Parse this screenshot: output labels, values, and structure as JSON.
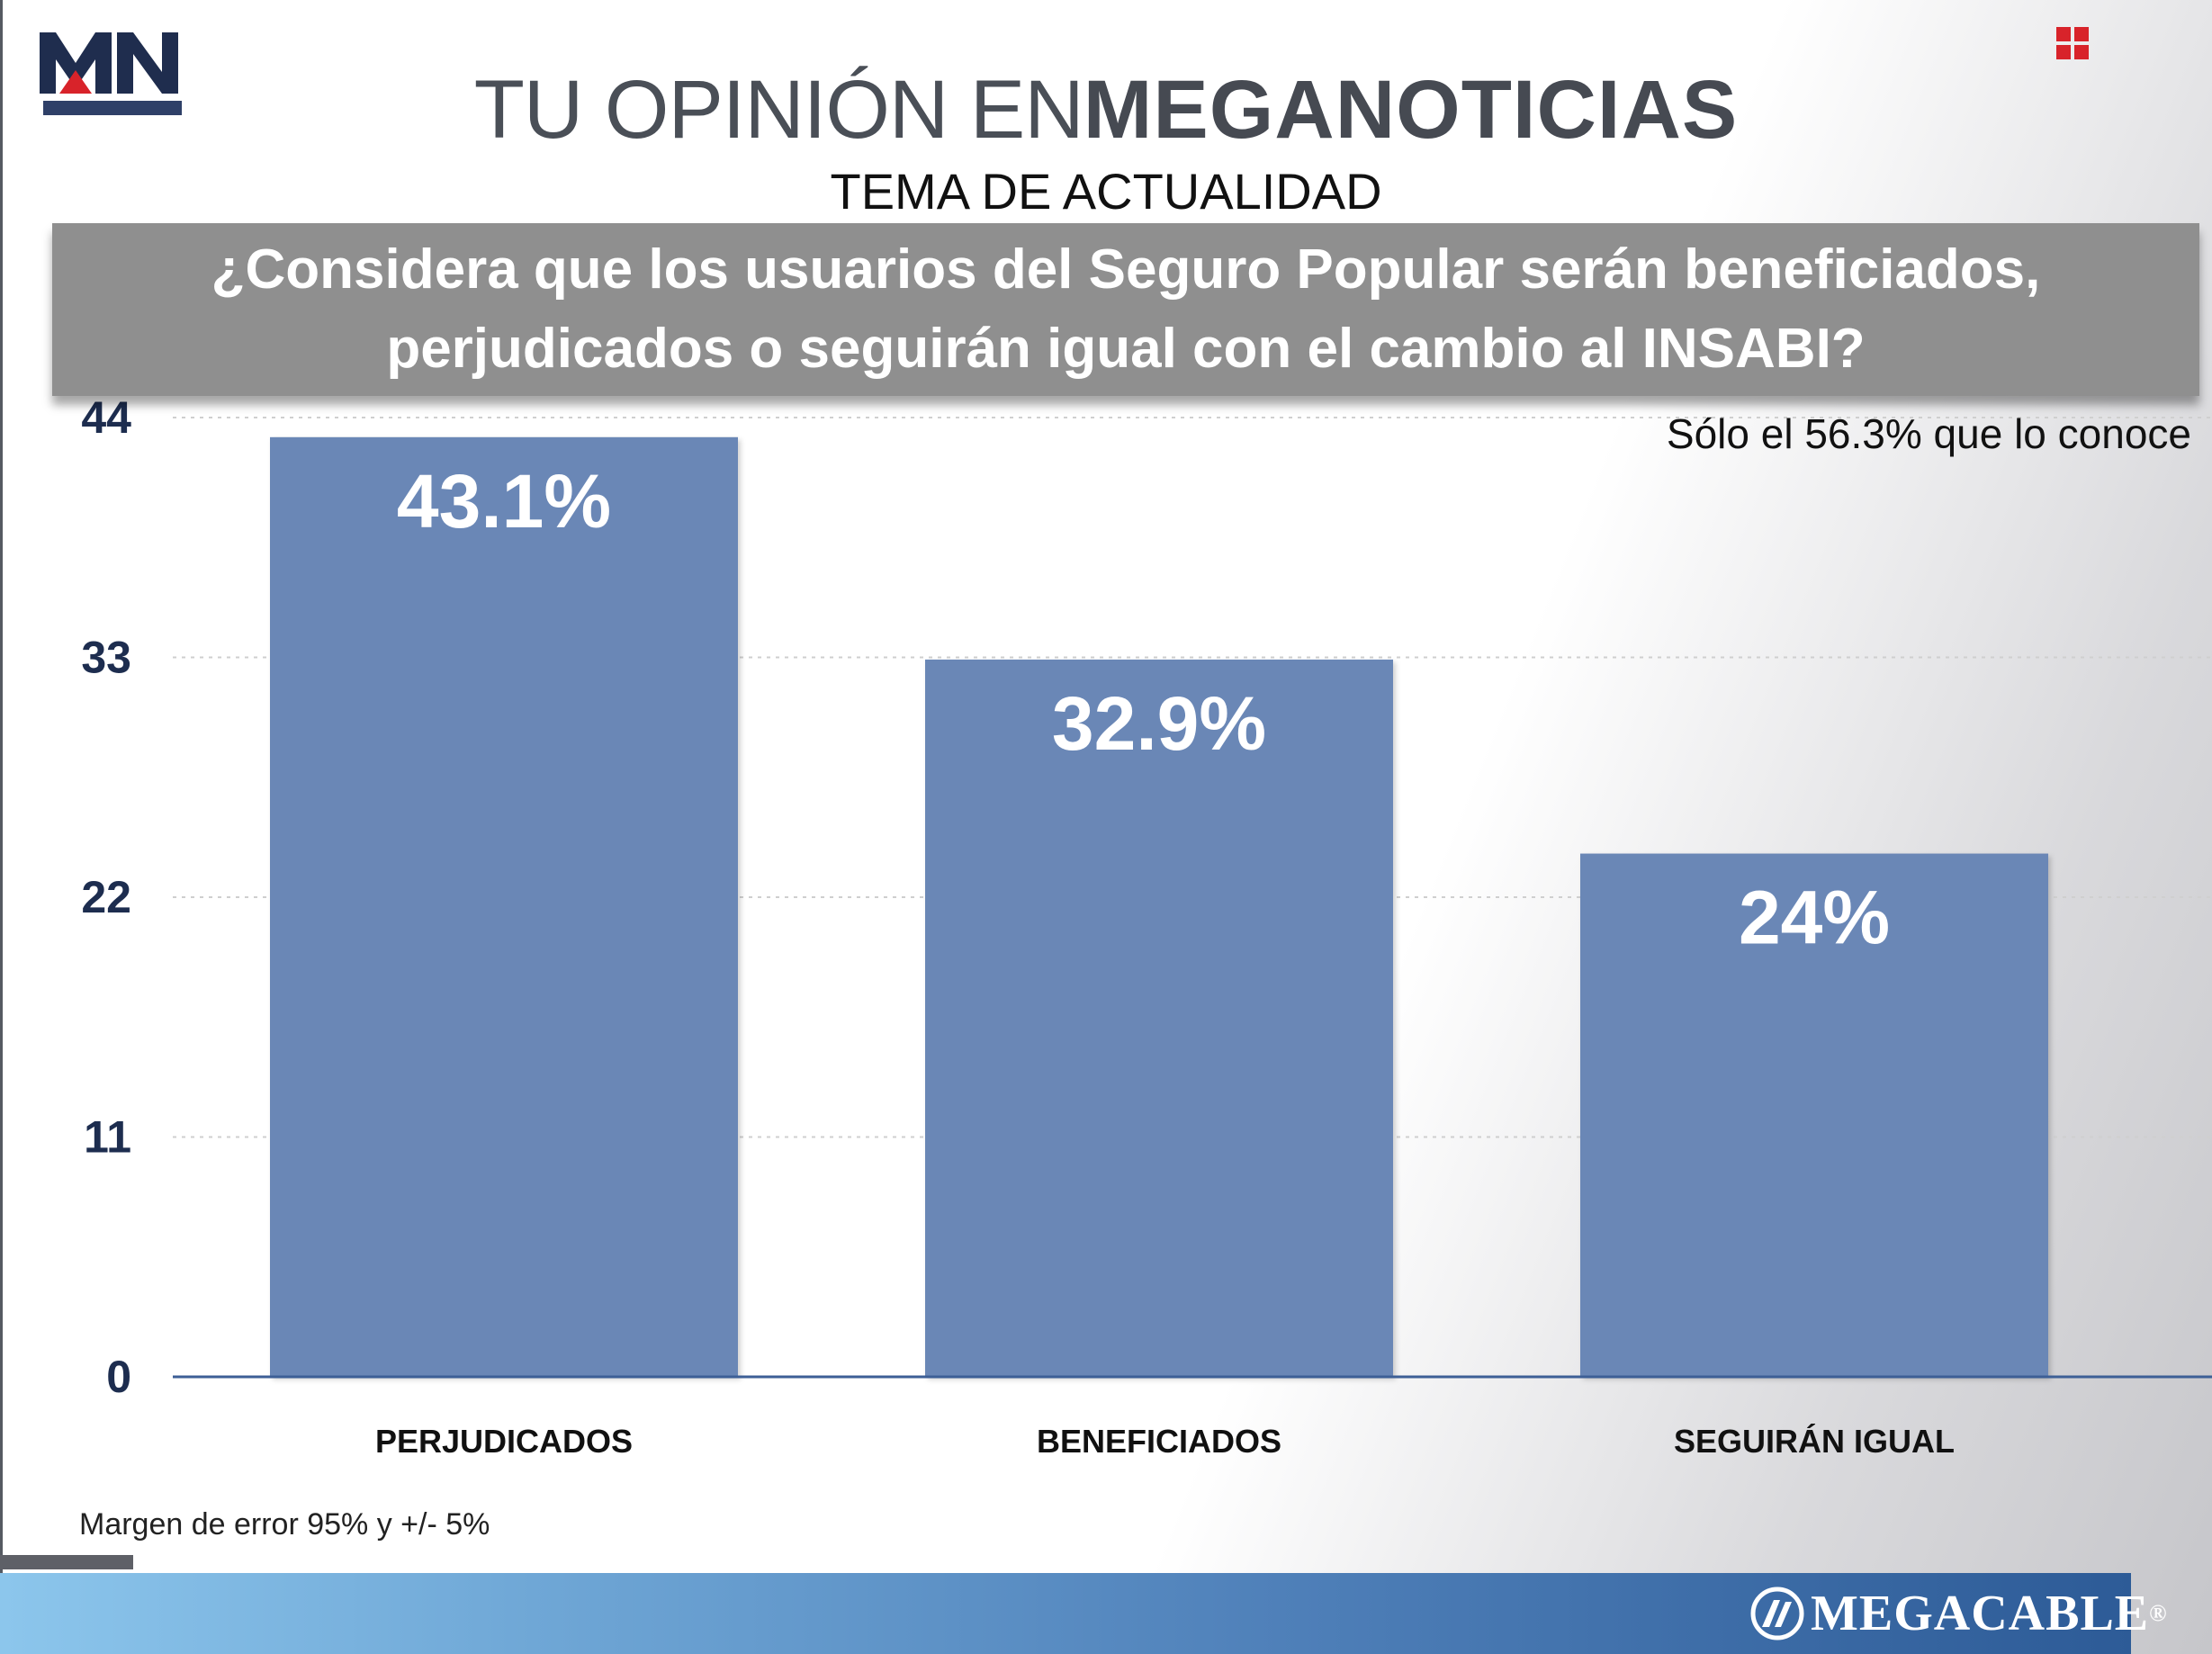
{
  "header": {
    "logo_text": "MN",
    "title_light": "TU OPINIÓN EN",
    "title_bold": "MEGANOTICIAS",
    "subtitle": "TEMA DE ACTUALIDAD"
  },
  "question": "¿Considera que los usuarios del Seguro Popular serán beneficiados, perjudicados o seguirán igual con el cambio al INSABI?",
  "note": "Sólo el 56.3% que lo conoce",
  "colors": {
    "bar": "#6b87b6",
    "axis_text": "#1d2d4f",
    "baseline": "#3d5f96",
    "question_bg": "#8f8f8f",
    "logo_dark": "#1f2d4e",
    "logo_red": "#d8232a",
    "grid_icon": "#d8232a"
  },
  "chart_data": {
    "type": "bar",
    "categories": [
      "PERJUDICADOS",
      "BENEFICIADOS",
      "SEGUIRÁN IGUAL"
    ],
    "values": [
      43.1,
      32.9,
      24
    ],
    "data_labels": [
      "43.1%",
      "32.9%",
      "24%"
    ],
    "yticks": [
      0,
      11,
      22,
      33,
      44
    ],
    "ylim": [
      0,
      44
    ],
    "grid": true,
    "title": "",
    "xlabel": "",
    "ylabel": ""
  },
  "footer": {
    "margin_note": "Margen de error 95% y +/- 5%",
    "brand": "MEGACABLE",
    "brand_mark": "®"
  }
}
